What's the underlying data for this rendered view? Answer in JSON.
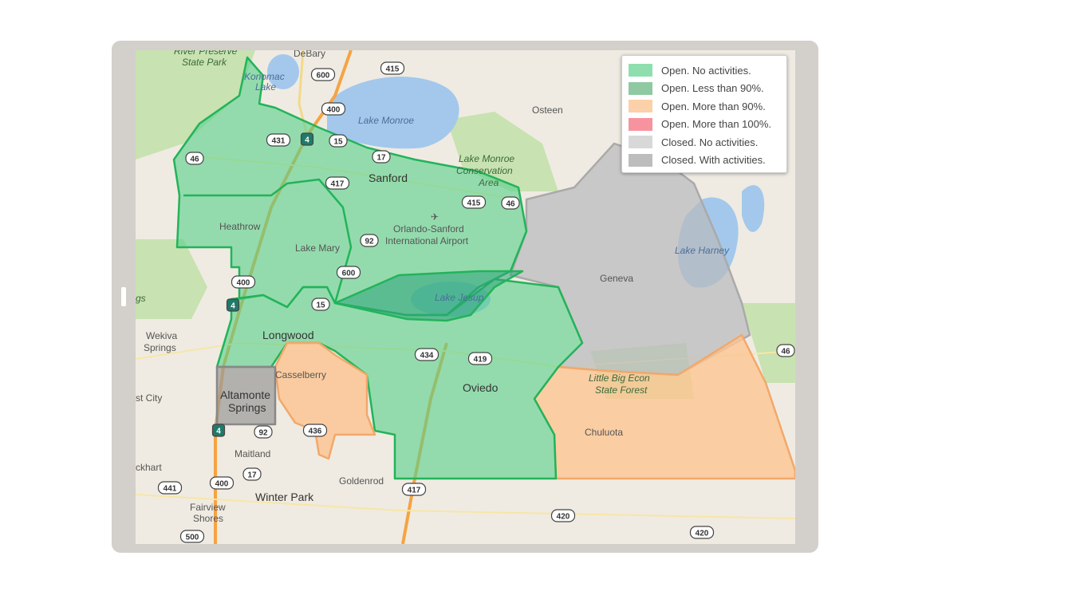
{
  "legend": {
    "items": [
      {
        "label": "Open. No activities.",
        "color": "#8fdfae"
      },
      {
        "label": "Open. Less than 90%.",
        "color": "#8ec9a2"
      },
      {
        "label": "Open. More than 90%.",
        "color": "#fcd0a8"
      },
      {
        "label": "Open. More than 100%.",
        "color": "#f7939f"
      },
      {
        "label": "Closed. No activities.",
        "color": "#d8d8d8"
      },
      {
        "label": "Closed. With activities.",
        "color": "#bdbdbd"
      }
    ]
  },
  "map": {
    "places": {
      "river_preserve": "River Preserve",
      "state_park": "State Park",
      "debary": "DeBary",
      "konomac": "Konomac",
      "lake_word": "Lake",
      "lake_monroe": "Lake Monroe",
      "osteen": "Osteen",
      "lake_monroe_cons1": "Lake Monroe",
      "lake_monroe_cons2": "Conservation",
      "lake_monroe_cons3": "Area",
      "sanford": "Sanford",
      "heathrow": "Heathrow",
      "airport1": "Orlando-Sanford",
      "airport2": "International Airport",
      "lake_mary": "Lake Mary",
      "lake_harney": "Lake Harney",
      "geneva": "Geneva",
      "lake_jesup": "Lake Jesup",
      "gs": "gs",
      "wekiva1": "Wekiva",
      "wekiva2": "Springs",
      "longwood": "Longwood",
      "casselberry": "Casselberry",
      "altamonte1": "Altamonte",
      "altamonte2": "Springs",
      "oviedo": "Oviedo",
      "little_big_econ1": "Little Big Econ",
      "little_big_econ2": "State Forest",
      "chuluota": "Chuluota",
      "st_city": "st City",
      "maitland": "Maitland",
      "goldenrod": "Goldenrod",
      "ckhart": "ckhart",
      "winter_park": "Winter Park",
      "fairview1": "Fairview",
      "fairview2": "Shores"
    },
    "shields": [
      "600",
      "415",
      "400",
      "431",
      "4",
      "15",
      "17",
      "46",
      "417",
      "415",
      "46",
      "92",
      "600",
      "400",
      "4",
      "15",
      "434",
      "419",
      "46",
      "436",
      "92",
      "4",
      "17",
      "400",
      "441",
      "417",
      "420",
      "420",
      "500"
    ],
    "colors": {
      "water": "#a3c8ec",
      "land": "#efebe2",
      "park": "#c8e2b1",
      "interstate": "#f6a343"
    }
  }
}
